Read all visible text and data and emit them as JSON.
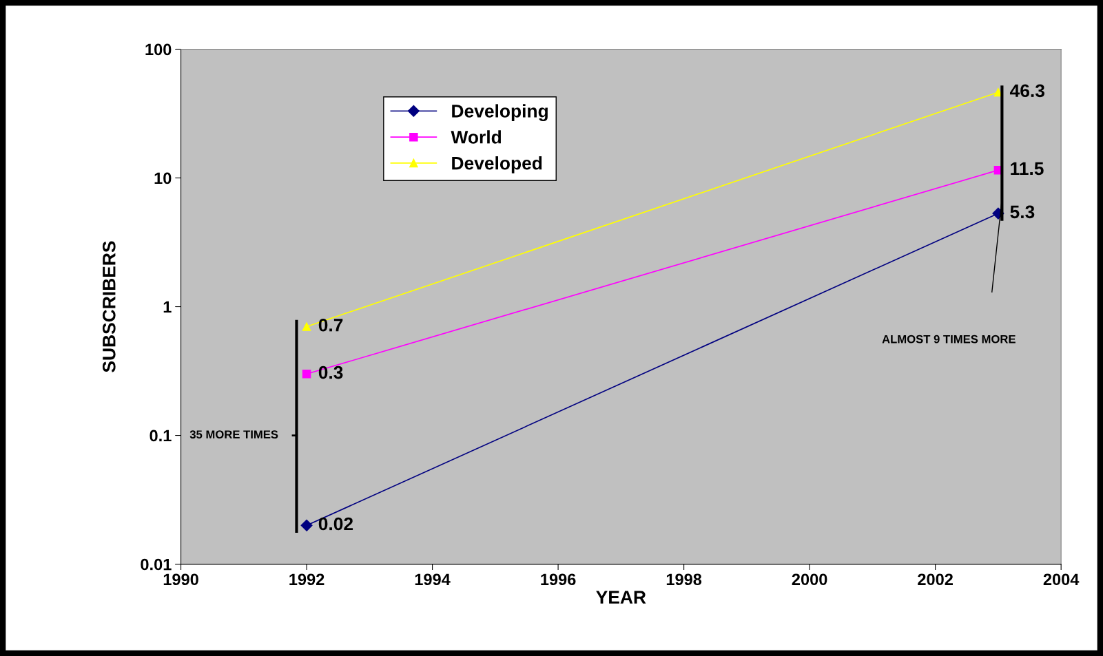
{
  "chart_data": {
    "type": "line",
    "xlabel": "YEAR",
    "ylabel": "SUBSCRIBERS",
    "x": [
      1992,
      2003
    ],
    "series": [
      {
        "name": "Developing",
        "color": "#000080",
        "marker": "diamond",
        "values": [
          0.02,
          5.3
        ]
      },
      {
        "name": "World",
        "color": "#ff00ff",
        "marker": "square",
        "values": [
          0.3,
          11.5
        ]
      },
      {
        "name": "Developed",
        "color": "#ffff00",
        "marker": "triangle",
        "values": [
          0.7,
          46.3
        ]
      }
    ],
    "log": "y",
    "xlim": [
      1990,
      2004
    ],
    "xticks": [
      1990,
      1992,
      1994,
      1996,
      1998,
      2000,
      2002,
      2004
    ],
    "ylim": [
      0.01,
      100
    ],
    "yticks": [
      0.01,
      0.1,
      1,
      10,
      100
    ],
    "data_labels": true,
    "legend": "top left",
    "grid": false,
    "line_style": "solid",
    "annotations": [
      "35 MORE TIMES",
      "ALMOST 9 TIMES MORE"
    ]
  }
}
